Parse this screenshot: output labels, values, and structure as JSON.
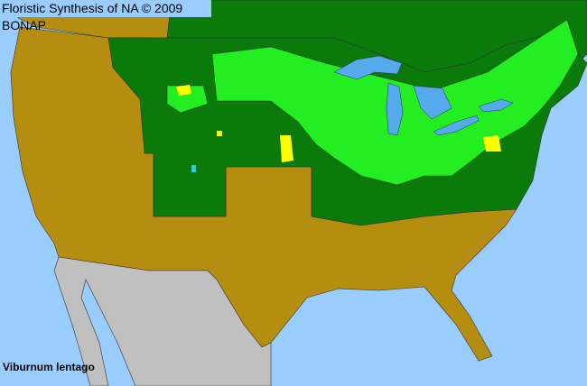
{
  "header": {
    "title": "Floristic Synthesis of NA © 2009 BONAP"
  },
  "map": {
    "species": "Viburnum lentago",
    "colors": {
      "ocean": "#99ccff",
      "not_present_in_state": "#b58e10",
      "present_in_state": "#0a7a0a",
      "present_in_county": "#22ee22",
      "county_rare": "#ffff00",
      "mexico": "#c0c0c0",
      "lakes": "#55aaee"
    }
  }
}
